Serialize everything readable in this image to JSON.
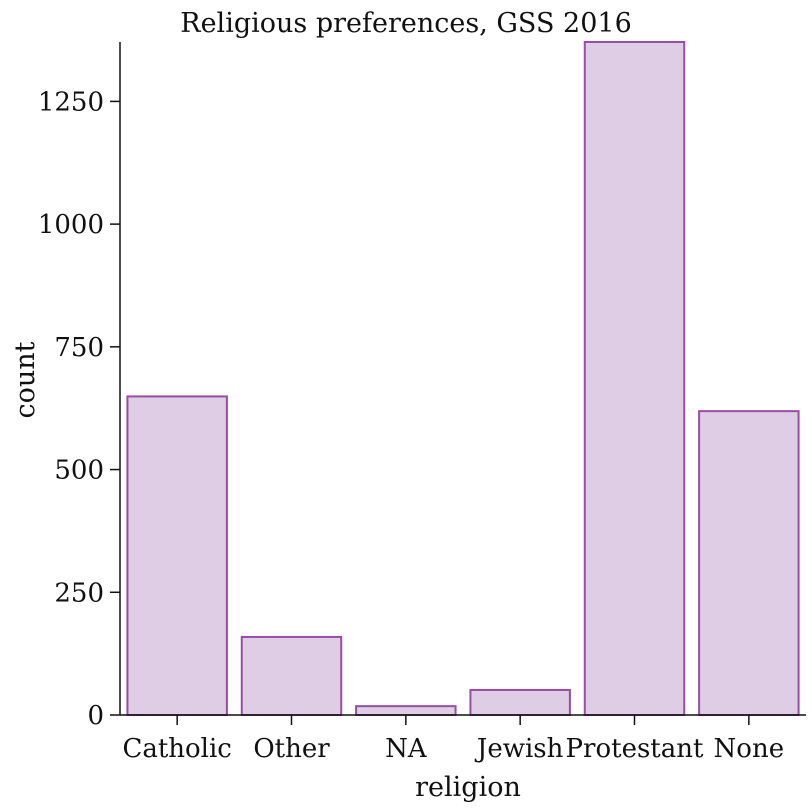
{
  "chart_data": {
    "type": "bar",
    "title": "Religious preferences, GSS 2016",
    "xlabel": "religion",
    "ylabel": "count",
    "categories": [
      "Catholic",
      "Other",
      "NA",
      "Jewish",
      "Protestant",
      "None"
    ],
    "values": [
      649,
      159,
      18,
      51,
      1371,
      619
    ],
    "ylim": [
      0,
      1371
    ],
    "yticks": [
      0,
      250,
      500,
      750,
      1000,
      1250
    ],
    "grid": false,
    "legend": "none",
    "colors": {
      "bar_fill": "#dfcce5",
      "bar_stroke": "#984ea3",
      "axis": "#111111"
    }
  }
}
